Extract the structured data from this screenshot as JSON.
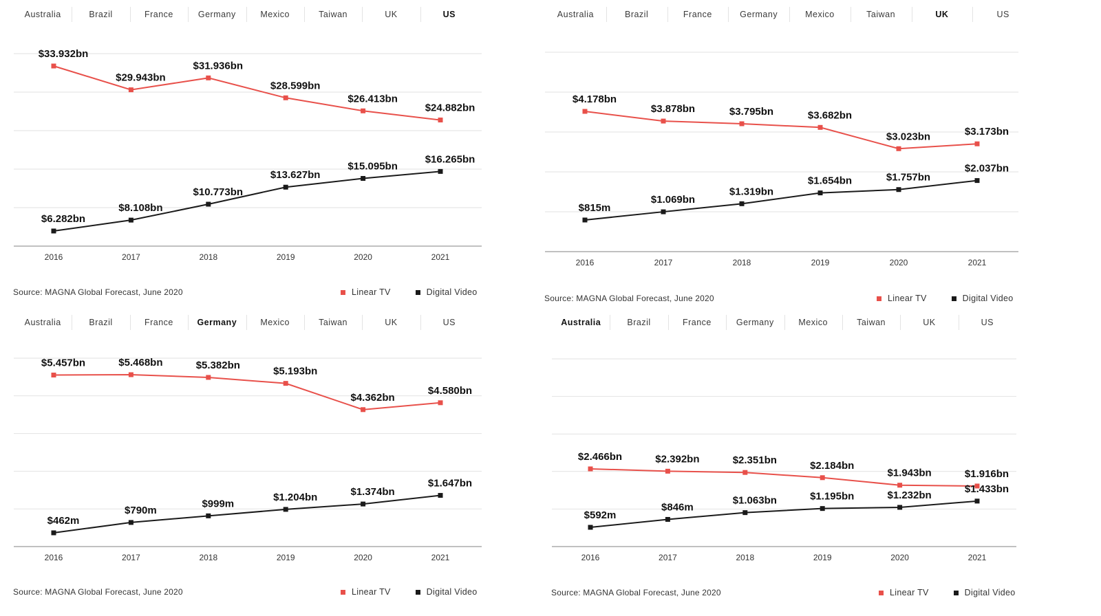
{
  "tab_labels": [
    "Australia",
    "Brazil",
    "France",
    "Germany",
    "Mexico",
    "Taiwan",
    "UK",
    "US"
  ],
  "source": "Source: MAGNA Global Forecast, June 2020",
  "colors": {
    "linear_tv": "#e8504a",
    "digital_video": "#1a1a1a",
    "gridline": "#e2e2e2",
    "axis": "#9a9a9a"
  },
  "legend": {
    "linear_tv": "Linear TV",
    "digital_video": "Digital Video"
  },
  "chart_data": [
    {
      "type": "line",
      "country": "US",
      "active_tab": "US",
      "grid": true,
      "legend_position": "bottom-right",
      "ylim": [
        0,
        36
      ],
      "categories": [
        "2016",
        "2017",
        "2018",
        "2019",
        "2020",
        "2021"
      ],
      "series": [
        {
          "name": "Linear TV",
          "values": [
            33.932,
            29.943,
            31.936,
            28.599,
            26.413,
            24.882
          ],
          "labels": [
            "$33.932bn",
            "$29.943bn",
            "$31.936bn",
            "$28.599bn",
            "$26.413bn",
            "$24.882bn"
          ]
        },
        {
          "name": "Digital Video",
          "values": [
            6.282,
            8.108,
            10.773,
            13.627,
            15.095,
            16.265
          ],
          "labels": [
            "$6.282bn",
            "$8.108bn",
            "$10.773bn",
            "$13.627bn",
            "$15.095bn",
            "$16.265bn"
          ]
        }
      ]
    },
    {
      "type": "line",
      "country": "UK",
      "active_tab": "UK",
      "grid": true,
      "legend_position": "bottom-right",
      "ylim": [
        0,
        5.5
      ],
      "categories": [
        "2016",
        "2017",
        "2018",
        "2019",
        "2020",
        "2021"
      ],
      "series": [
        {
          "name": "Linear TV",
          "values": [
            4.178,
            3.878,
            3.795,
            3.682,
            3.023,
            3.173
          ],
          "labels": [
            "$4.178bn",
            "$3.878bn",
            "$3.795bn",
            "$3.682bn",
            "$3.023bn",
            "$3.173bn"
          ]
        },
        {
          "name": "Digital Video",
          "values": [
            0.815,
            1.069,
            1.319,
            1.654,
            1.757,
            2.037
          ],
          "labels": [
            "$815m",
            "$1.069bn",
            "$1.319bn",
            "$1.654bn",
            "$1.757bn",
            "$2.037bn"
          ]
        }
      ]
    },
    {
      "type": "line",
      "country": "Germany",
      "active_tab": "Germany",
      "grid": true,
      "legend_position": "bottom-right",
      "ylim": [
        0,
        6.5
      ],
      "categories": [
        "2016",
        "2017",
        "2018",
        "2019",
        "2020",
        "2021"
      ],
      "series": [
        {
          "name": "Linear TV",
          "values": [
            5.457,
            5.468,
            5.382,
            5.193,
            4.362,
            4.58
          ],
          "labels": [
            "$5.457bn",
            "$5.468bn",
            "$5.382bn",
            "$5.193bn",
            "$4.362bn",
            "$4.580bn"
          ]
        },
        {
          "name": "Digital Video",
          "values": [
            0.462,
            0.79,
            0.999,
            1.204,
            1.374,
            1.647
          ],
          "labels": [
            "$462m",
            "$790m",
            "$999m",
            "$1.204bn",
            "$1.374bn",
            "$1.647bn"
          ]
        }
      ]
    },
    {
      "type": "line",
      "country": "Australia",
      "active_tab": "Australia",
      "grid": true,
      "legend_position": "bottom-right",
      "ylim": [
        0,
        6.0
      ],
      "categories": [
        "2016",
        "2017",
        "2018",
        "2019",
        "2020",
        "2021"
      ],
      "series": [
        {
          "name": "Linear TV",
          "values": [
            2.466,
            2.392,
            2.351,
            2.184,
            1.943,
            1.916
          ],
          "labels": [
            "$2.466bn",
            "$2.392bn",
            "$2.351bn",
            "$2.184bn",
            "$1.943bn",
            "$1.916bn"
          ]
        },
        {
          "name": "Digital Video",
          "values": [
            0.592,
            0.846,
            1.063,
            1.195,
            1.232,
            1.433
          ],
          "labels": [
            "$592m",
            "$846m",
            "$1.063bn",
            "$1.195bn",
            "$1.232bn",
            "$1.433bn"
          ]
        }
      ]
    }
  ]
}
